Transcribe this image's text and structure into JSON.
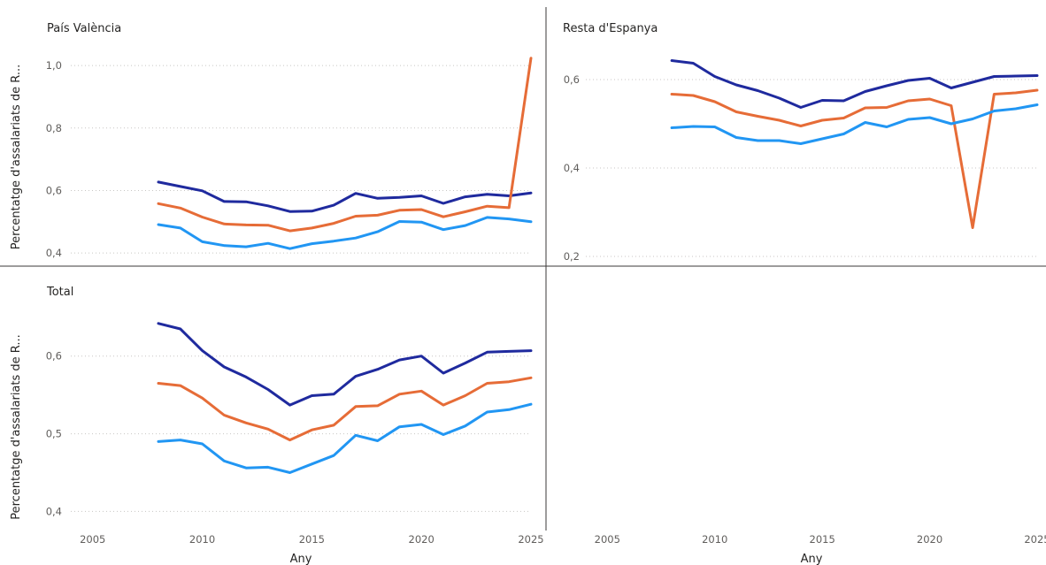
{
  "chart_data": {
    "type": "line",
    "x_axis_label": "Any",
    "y_axis_label": "Percentatge d'assalariats de R...",
    "x_ticks": [
      2005,
      2010,
      2015,
      2020,
      2025
    ],
    "xlim": [
      2004,
      2025
    ],
    "series_colors": [
      "#1f2a9e",
      "#e66c37",
      "#2196f3"
    ],
    "panels": [
      {
        "title": "País València",
        "ylim": [
          0.375,
          1.04
        ],
        "y_ticks": [
          "0,4",
          "0,6",
          "0,8",
          "1,0"
        ],
        "y_tick_values": [
          0.4,
          0.6,
          0.8,
          1.0
        ],
        "x": [
          2008,
          2009,
          2010,
          2011,
          2012,
          2013,
          2014,
          2015,
          2016,
          2017,
          2018,
          2019,
          2020,
          2021,
          2022,
          2023,
          2024,
          2025
        ],
        "series": [
          {
            "values": [
              0.627,
              0.613,
              0.599,
              0.565,
              0.564,
              0.551,
              0.533,
              0.534,
              0.553,
              0.591,
              0.575,
              0.578,
              0.583,
              0.559,
              0.58,
              0.588,
              0.583,
              0.592
            ]
          },
          {
            "values": [
              0.558,
              0.544,
              0.515,
              0.493,
              0.49,
              0.489,
              0.471,
              0.48,
              0.495,
              0.518,
              0.521,
              0.537,
              0.539,
              0.516,
              0.532,
              0.55,
              0.545,
              1.024
            ]
          },
          {
            "values": [
              0.491,
              0.48,
              0.436,
              0.424,
              0.42,
              0.431,
              0.414,
              0.43,
              0.438,
              0.448,
              0.468,
              0.501,
              0.499,
              0.475,
              0.488,
              0.514,
              0.509,
              0.5
            ]
          }
        ]
      },
      {
        "title": "Resta d'Espanya",
        "ylim": [
          0.19,
          0.66
        ],
        "y_ticks": [
          "0,2",
          "0,4",
          "0,6"
        ],
        "y_tick_values": [
          0.2,
          0.4,
          0.6
        ],
        "x": [
          2008,
          2009,
          2010,
          2011,
          2012,
          2013,
          2014,
          2015,
          2016,
          2017,
          2018,
          2019,
          2020,
          2021,
          2022,
          2023,
          2024,
          2025
        ],
        "series": [
          {
            "values": [
              0.643,
              0.637,
              0.607,
              0.588,
              0.575,
              0.558,
              0.537,
              0.553,
              0.552,
              0.573,
              0.586,
              0.598,
              0.603,
              0.581,
              0.594,
              0.607,
              0.608,
              0.609
            ]
          },
          {
            "values": [
              0.567,
              0.564,
              0.55,
              0.527,
              0.517,
              0.508,
              0.495,
              0.508,
              0.513,
              0.536,
              0.537,
              0.552,
              0.556,
              0.541,
              0.265,
              0.567,
              0.57,
              0.576
            ]
          },
          {
            "values": [
              0.491,
              0.494,
              0.493,
              0.469,
              0.462,
              0.462,
              0.455,
              0.466,
              0.477,
              0.503,
              0.493,
              0.51,
              0.514,
              0.5,
              0.511,
              0.529,
              0.534,
              0.543
            ]
          }
        ]
      },
      {
        "title": "Total",
        "ylim": [
          0.38,
          0.66
        ],
        "y_ticks": [
          "0,4",
          "0,5",
          "0,6"
        ],
        "y_tick_values": [
          0.4,
          0.5,
          0.6
        ],
        "x": [
          2008,
          2009,
          2010,
          2011,
          2012,
          2013,
          2014,
          2015,
          2016,
          2017,
          2018,
          2019,
          2020,
          2021,
          2022,
          2023,
          2024,
          2025
        ],
        "series": [
          {
            "values": [
              0.642,
              0.635,
              0.607,
              0.586,
              0.573,
              0.557,
              0.537,
              0.549,
              0.551,
              0.574,
              0.583,
              0.595,
              0.6,
              0.578,
              0.591,
              0.605,
              0.606,
              0.607
            ]
          },
          {
            "values": [
              0.565,
              0.562,
              0.546,
              0.524,
              0.514,
              0.506,
              0.492,
              0.505,
              0.511,
              0.535,
              0.536,
              0.551,
              0.555,
              0.537,
              0.549,
              0.565,
              0.567,
              0.572
            ]
          },
          {
            "values": [
              0.49,
              0.492,
              0.487,
              0.465,
              0.456,
              0.457,
              0.45,
              0.461,
              0.472,
              0.498,
              0.491,
              0.509,
              0.512,
              0.499,
              0.51,
              0.528,
              0.531,
              0.538
            ]
          }
        ]
      }
    ]
  }
}
